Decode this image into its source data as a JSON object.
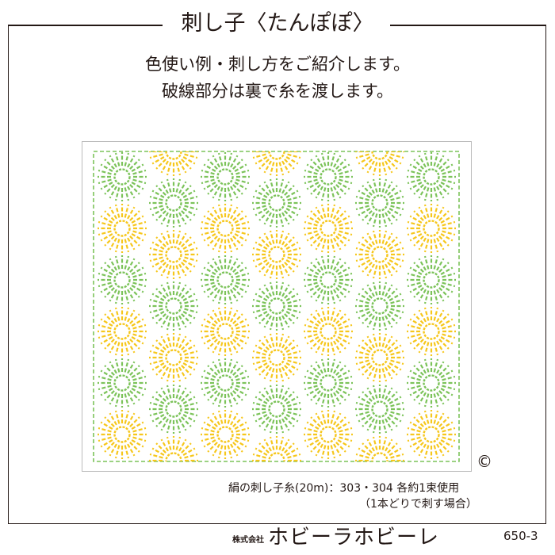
{
  "title": "刺し子〈たんぽぽ〉",
  "description": [
    "色使い例・刺し方をご紹介します。",
    "破線部分は裏で糸を渡します。"
  ],
  "copyright_symbol": "©",
  "thread_note": "絹の刺し子糸(20m)：303・304 各約1束使用",
  "thread_note_sub": "（1本どりで刺す場合）",
  "company_prefix": "株式会社",
  "company_name": "ホビーラホビーレ",
  "product_code": "650-3",
  "colors": {
    "green": "#7cc35a",
    "yellow": "#f6c71c",
    "border": "#231815"
  },
  "pattern": {
    "motif": "dandelion-sunburst",
    "columns": 7,
    "color_order_even_columns": [
      "green",
      "yellow"
    ],
    "color_order_odd_columns": [
      "yellow",
      "green"
    ]
  }
}
